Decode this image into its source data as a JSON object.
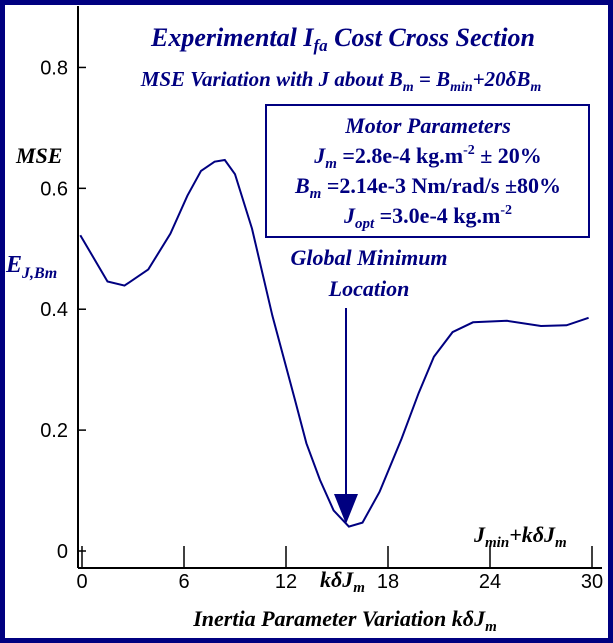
{
  "chart_data": {
    "type": "line",
    "title": "Experimental I_fa Cost Cross Section",
    "subtitle": "MSE Variation with J about B_m = B_min+20δB_m",
    "xlabel": "Inertia Parameter Variation kδJ_m",
    "ylabel": "MSE E_J,Bm",
    "xlim": [
      0,
      30
    ],
    "ylim": [
      0,
      0.9
    ],
    "x_ticks": [
      "0",
      "6",
      "12",
      "18",
      "24",
      "30"
    ],
    "y_ticks": [
      "0",
      "0.2",
      "0.4",
      "0.6",
      "0.8"
    ],
    "series": [
      {
        "color": "#000080",
        "x": [
          -0.1,
          1.5,
          2.5,
          3.9,
          5.2,
          6.2,
          7.0,
          7.8,
          8.4,
          9.0,
          10.0,
          11.2,
          12.5,
          13.2,
          14.0,
          14.8,
          15.7,
          16.5,
          17.5,
          18.8,
          19.8,
          20.7,
          21.8,
          23.0,
          25.0,
          27.0,
          28.5,
          29.8
        ],
        "y": [
          0.5224,
          0.4458,
          0.4391,
          0.4658,
          0.5249,
          0.5878,
          0.6288,
          0.6441,
          0.6469,
          0.6233,
          0.5333,
          0.3891,
          0.2529,
          0.1782,
          0.1175,
          0.0672,
          0.0404,
          0.047,
          0.0976,
          0.1859,
          0.261,
          0.3213,
          0.3621,
          0.3784,
          0.3808,
          0.3722,
          0.3734,
          0.3858
        ]
      }
    ],
    "grid": false,
    "legend": "none"
  },
  "texts": {
    "title_main": "Experimental I",
    "title_sub": "fa",
    "title_rest": " Cost Cross Section",
    "subtitle_a": "MSE Variation with J about B",
    "subtitle_b": "m",
    "subtitle_c": " = B",
    "subtitle_d": "min",
    "subtitle_e": "+20",
    "subtitle_f": "δ",
    "subtitle_g": "B",
    "subtitle_h": "m",
    "mse_label": "MSE",
    "e_main": "E",
    "e_sub": "J,Bm",
    "params_title": "Motor Parameters",
    "p1_a": "J",
    "p1_b": "m",
    "p1_c": " =2.8e-4 kg.m",
    "p1_d": "-2",
    "p1_e": " ± 20%",
    "p2_a": "B",
    "p2_b": "m",
    "p2_c": " =2.14e-3 Nm/rad/s ±80%",
    "p3_a": "J",
    "p3_b": "opt",
    "p3_c": " =3.0e-4 kg.m",
    "p3_d": "-2",
    "annot_line1": "Global Minimum",
    "annot_line2": "Location",
    "jmin_a": "J",
    "jmin_b": "min",
    "jmin_c": "+k",
    "jmin_d": "δ",
    "jmin_e": "J",
    "jmin_f": "m",
    "kdj_a": "k",
    "kdj_b": "δ",
    "kdj_c": "J",
    "kdj_d": "m",
    "xlabel_a": "Inertia Parameter Variation k",
    "xlabel_b": "δ",
    "xlabel_c": "J",
    "xlabel_d": "m"
  },
  "colors": {
    "text": "#000080",
    "curve": "#000080",
    "axes": "#000000",
    "frame": "#000080"
  }
}
